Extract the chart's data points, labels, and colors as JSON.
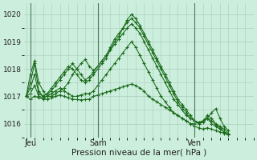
{
  "bg_color": "#cceedd",
  "grid_color": "#aaccbb",
  "line_color": "#1a6b1a",
  "marker_color": "#1a6b1a",
  "xlabel": "Pression niveau de la mer( hPa )",
  "xlabel_fontsize": 7.5,
  "yticks": [
    1016,
    1017,
    1018,
    1019,
    1020
  ],
  "ylim": [
    1015.5,
    1020.4
  ],
  "xlim": [
    -0.5,
    54
  ],
  "xtick_labels": [
    "Jeu",
    "Sam",
    "Ven"
  ],
  "xtick_positions": [
    1,
    17,
    40
  ],
  "series": [
    [
      1017.0,
      1017.8,
      1018.3,
      1017.5,
      1017.2,
      1017.0,
      1017.0,
      1017.1,
      1017.2,
      1017.3,
      1017.5,
      1017.8,
      1018.0,
      1018.2,
      1018.35,
      1018.1,
      1017.95,
      1018.1,
      1018.3,
      1018.5,
      1018.7,
      1019.0,
      1019.2,
      1019.5,
      1019.8,
      1020.0,
      1019.85,
      1019.6,
      1019.3,
      1019.0,
      1018.7,
      1018.4,
      1018.1,
      1017.8,
      1017.5,
      1017.2,
      1016.9,
      1016.7,
      1016.5,
      1016.3,
      1016.1,
      1016.0,
      1016.05,
      1016.2,
      1016.4,
      1016.55,
      1016.2,
      1015.9,
      1015.75
    ],
    [
      1017.0,
      1017.5,
      1018.2,
      1017.2,
      1017.0,
      1017.1,
      1017.2,
      1017.4,
      1017.6,
      1017.8,
      1018.0,
      1018.2,
      1018.0,
      1017.8,
      1017.6,
      1017.7,
      1017.9,
      1018.1,
      1018.3,
      1018.5,
      1018.8,
      1019.1,
      1019.3,
      1019.5,
      1019.7,
      1019.85,
      1019.7,
      1019.5,
      1019.2,
      1018.9,
      1018.6,
      1018.3,
      1018.0,
      1017.7,
      1017.4,
      1017.1,
      1016.8,
      1016.6,
      1016.4,
      1016.2,
      1016.1,
      1016.0,
      1016.1,
      1016.3,
      1016.2,
      1016.0,
      1015.9,
      1015.8,
      1015.65
    ],
    [
      1017.0,
      1017.3,
      1017.8,
      1017.1,
      1017.0,
      1017.1,
      1017.3,
      1017.5,
      1017.7,
      1017.9,
      1018.1,
      1018.0,
      1017.8,
      1017.6,
      1017.5,
      1017.6,
      1017.8,
      1018.0,
      1018.2,
      1018.4,
      1018.7,
      1018.9,
      1019.1,
      1019.3,
      1019.5,
      1019.65,
      1019.5,
      1019.3,
      1019.0,
      1018.7,
      1018.4,
      1018.1,
      1017.8,
      1017.5,
      1017.2,
      1016.9,
      1016.7,
      1016.5,
      1016.3,
      1016.2,
      1016.1,
      1016.05,
      1016.1,
      1016.2,
      1016.1,
      1015.95,
      1015.85,
      1015.7,
      1015.6
    ],
    [
      1017.0,
      1017.1,
      1017.4,
      1017.0,
      1016.95,
      1017.0,
      1017.1,
      1017.2,
      1017.3,
      1017.2,
      1017.1,
      1017.0,
      1017.0,
      1017.05,
      1017.1,
      1017.1,
      1017.2,
      1017.4,
      1017.6,
      1017.8,
      1018.0,
      1018.2,
      1018.4,
      1018.6,
      1018.8,
      1019.0,
      1018.8,
      1018.5,
      1018.2,
      1017.9,
      1017.6,
      1017.3,
      1017.0,
      1016.8,
      1016.6,
      1016.4,
      1016.3,
      1016.2,
      1016.1,
      1016.0,
      1016.0,
      1016.05,
      1016.1,
      1016.2,
      1016.0,
      1015.9,
      1015.8,
      1015.7,
      1015.6
    ],
    [
      1017.0,
      1016.9,
      1017.0,
      1016.95,
      1016.9,
      1016.9,
      1016.95,
      1017.0,
      1017.05,
      1017.0,
      1016.95,
      1016.9,
      1016.88,
      1016.87,
      1016.88,
      1016.9,
      1017.0,
      1017.05,
      1017.1,
      1017.15,
      1017.2,
      1017.25,
      1017.3,
      1017.35,
      1017.4,
      1017.45,
      1017.4,
      1017.3,
      1017.2,
      1017.0,
      1016.9,
      1016.8,
      1016.7,
      1016.6,
      1016.5,
      1016.4,
      1016.3,
      1016.2,
      1016.1,
      1016.0,
      1015.9,
      1015.85,
      1015.8,
      1015.85,
      1015.8,
      1015.75,
      1015.7,
      1015.65,
      1015.6
    ]
  ]
}
